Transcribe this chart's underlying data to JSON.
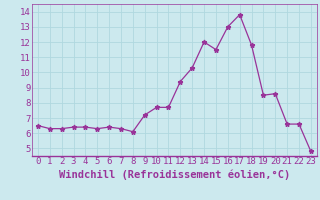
{
  "x": [
    0,
    1,
    2,
    3,
    4,
    5,
    6,
    7,
    8,
    9,
    10,
    11,
    12,
    13,
    14,
    15,
    16,
    17,
    18,
    19,
    20,
    21,
    22,
    23
  ],
  "y": [
    6.5,
    6.3,
    6.3,
    6.4,
    6.4,
    6.3,
    6.4,
    6.3,
    6.1,
    7.2,
    7.7,
    7.7,
    9.4,
    10.3,
    12.0,
    11.5,
    13.0,
    13.8,
    11.8,
    8.5,
    8.6,
    6.6,
    6.6,
    4.8
  ],
  "line_color": "#993399",
  "marker": "*",
  "marker_size": 3.5,
  "xlabel": "Windchill (Refroidissement éolien,°C)",
  "xlim": [
    -0.5,
    23.5
  ],
  "ylim": [
    4.5,
    14.5
  ],
  "yticks": [
    5,
    6,
    7,
    8,
    9,
    10,
    11,
    12,
    13,
    14
  ],
  "xtick_labels": [
    "0",
    "1",
    "2",
    "3",
    "4",
    "5",
    "6",
    "7",
    "8",
    "9",
    "10",
    "11",
    "12",
    "13",
    "14",
    "15",
    "16",
    "17",
    "18",
    "19",
    "20",
    "21",
    "22",
    "23"
  ],
  "bg_color": "#cce9ee",
  "grid_color": "#b0d8df",
  "label_color": "#993399",
  "tick_label_fontsize": 6.5,
  "xlabel_fontsize": 7.5
}
